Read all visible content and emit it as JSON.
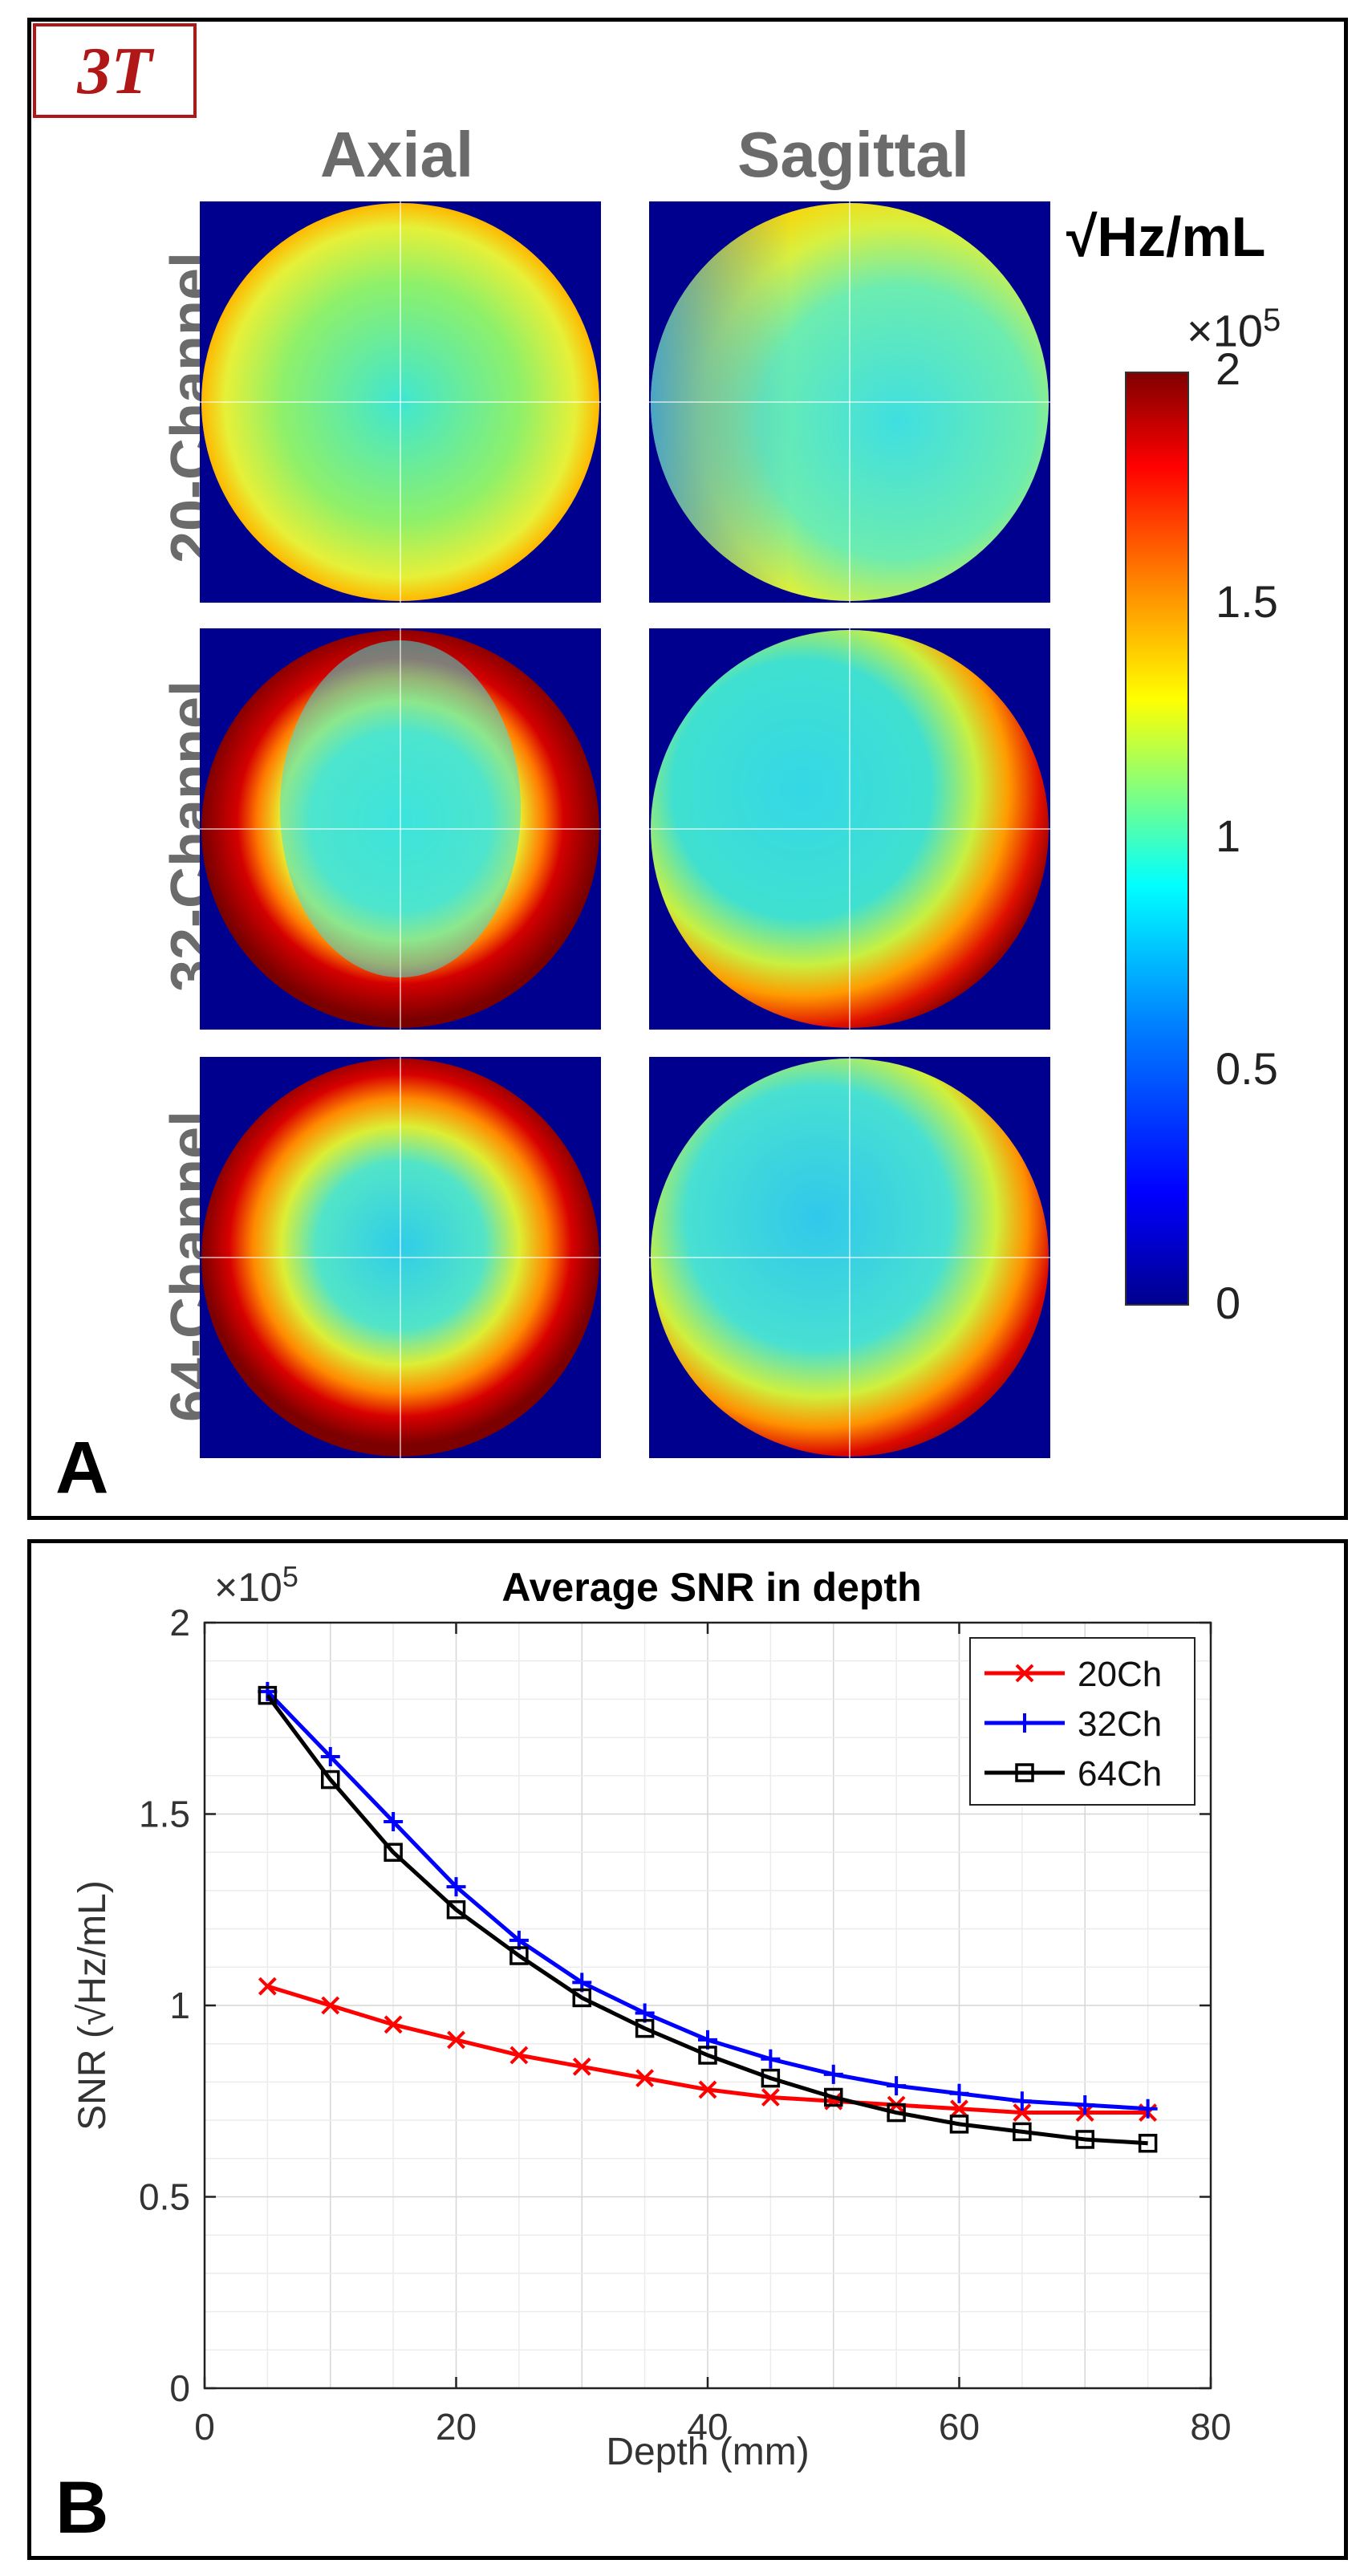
{
  "panel_a": {
    "badge": "3T",
    "column_labels": [
      "Axial",
      "Sagittal"
    ],
    "row_labels": [
      "20-Channel",
      "32-Channel",
      "64-Channel"
    ],
    "colorbar": {
      "unit": "√Hz/mL",
      "multiplier": "×10",
      "exponent": "5",
      "ticks": [
        "2",
        "1.5",
        "1",
        "0.5",
        "0"
      ]
    },
    "letter": "A"
  },
  "panel_b": {
    "letter": "B"
  },
  "colors": {
    "20Ch": "#ff0000",
    "32Ch": "#0000ff",
    "64Ch": "#000000",
    "badge": "#b01818",
    "map_background": "#00008f"
  },
  "chart_data": {
    "type": "line",
    "title": "Average SNR in depth",
    "xlabel": "Depth (mm)",
    "ylabel": "SNR (√Hz/mL)",
    "y_multiplier": "×10",
    "y_exponent": "5",
    "xlim": [
      0,
      80
    ],
    "ylim": [
      0,
      2
    ],
    "xticks": [
      "0",
      "20",
      "40",
      "60",
      "80"
    ],
    "yticks": [
      "0",
      "0.5",
      "1",
      "1.5",
      "2"
    ],
    "grid": true,
    "legend": "top-right",
    "x": [
      5,
      10,
      15,
      20,
      25,
      30,
      35,
      40,
      45,
      50,
      55,
      60,
      65,
      70,
      75
    ],
    "series": [
      {
        "name": "20Ch",
        "marker": "x",
        "values": [
          1.05,
          1.0,
          0.95,
          0.91,
          0.87,
          0.84,
          0.81,
          0.78,
          0.76,
          0.75,
          0.74,
          0.73,
          0.72,
          0.72,
          0.72
        ]
      },
      {
        "name": "32Ch",
        "marker": "+",
        "values": [
          1.82,
          1.65,
          1.48,
          1.31,
          1.17,
          1.06,
          0.98,
          0.91,
          0.86,
          0.82,
          0.79,
          0.77,
          0.75,
          0.74,
          0.73
        ]
      },
      {
        "name": "64Ch",
        "marker": "square",
        "values": [
          1.81,
          1.59,
          1.4,
          1.25,
          1.13,
          1.02,
          0.94,
          0.87,
          0.81,
          0.76,
          0.72,
          0.69,
          0.67,
          0.65,
          0.64
        ]
      }
    ]
  }
}
